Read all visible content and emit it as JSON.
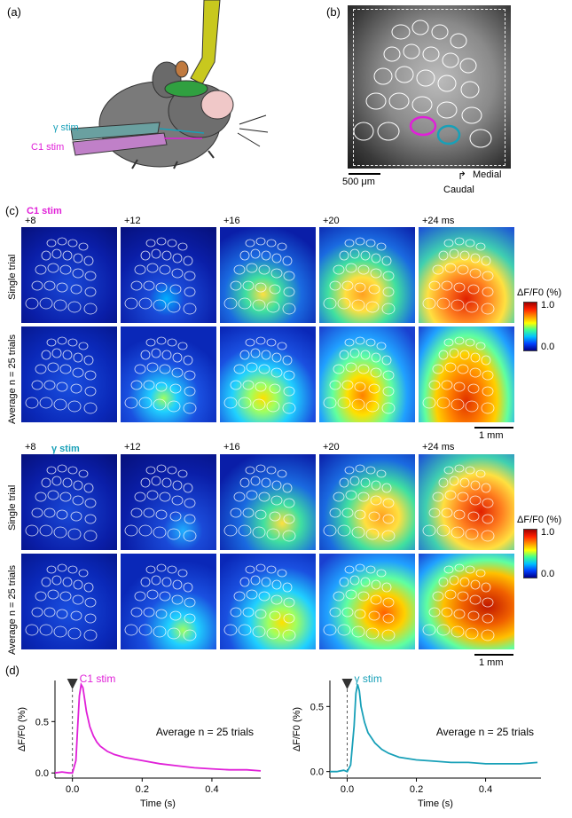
{
  "panels": {
    "a": "(a)",
    "b": "(b)",
    "c": "(c)",
    "d": "(d)"
  },
  "panel_a": {
    "gamma_stim": "γ stim",
    "c1_stim": "C1 stim"
  },
  "panel_b": {
    "scale": "500 μm",
    "medial": "Medial",
    "caudal": "Caudal"
  },
  "panel_c": {
    "c1_block_title": "C1 stim",
    "gamma_block_title": "γ stim",
    "times": [
      "+8",
      "+12",
      "+16",
      "+20",
      "+24 ms"
    ],
    "row_single": "Single trial",
    "row_average": "Average n = 25 trials",
    "colorbar_label": "ΔF/F0 (%)",
    "colorbar_ticks": [
      "1.0",
      "0.0"
    ],
    "scale": "1 mm",
    "colors": {
      "c1": "#e020d8",
      "gamma": "#18a0b8"
    }
  },
  "chart_data": [
    {
      "type": "line",
      "stim_label": "C1 stim",
      "annotation": "Average n = 25 trials",
      "xlabel": "Time (s)",
      "ylabel": "ΔF/F0 (%)",
      "xlim": [
        -0.05,
        0.54
      ],
      "ylim": [
        -0.05,
        0.9
      ],
      "xticks": [
        "0.0",
        "0.2",
        "0.4"
      ],
      "yticks": [
        "0.0",
        "0.5"
      ],
      "color": "#e020d8",
      "x": [
        -0.05,
        -0.03,
        -0.01,
        0.0,
        0.01,
        0.015,
        0.02,
        0.025,
        0.03,
        0.035,
        0.04,
        0.05,
        0.06,
        0.07,
        0.08,
        0.1,
        0.12,
        0.15,
        0.2,
        0.25,
        0.3,
        0.35,
        0.4,
        0.45,
        0.5,
        0.54
      ],
      "y": [
        0.0,
        0.01,
        0.0,
        0.0,
        0.12,
        0.45,
        0.75,
        0.86,
        0.83,
        0.72,
        0.6,
        0.45,
        0.36,
        0.3,
        0.26,
        0.21,
        0.18,
        0.15,
        0.12,
        0.09,
        0.07,
        0.05,
        0.04,
        0.03,
        0.03,
        0.02
      ]
    },
    {
      "type": "line",
      "stim_label": "γ stim",
      "annotation": "Average n = 25 trials",
      "xlabel": "Time (s)",
      "ylabel": "ΔF/F0 (%)",
      "xlim": [
        -0.05,
        0.56
      ],
      "ylim": [
        -0.05,
        0.7
      ],
      "xticks": [
        "0.0",
        "0.2",
        "0.4"
      ],
      "yticks": [
        "0.0",
        "0.5"
      ],
      "color": "#18a0b8",
      "x": [
        -0.05,
        -0.03,
        -0.01,
        0.0,
        0.01,
        0.02,
        0.025,
        0.03,
        0.035,
        0.04,
        0.05,
        0.06,
        0.08,
        0.1,
        0.12,
        0.15,
        0.2,
        0.25,
        0.3,
        0.35,
        0.4,
        0.45,
        0.5,
        0.55
      ],
      "y": [
        0.0,
        0.0,
        0.01,
        0.0,
        0.05,
        0.35,
        0.6,
        0.67,
        0.62,
        0.5,
        0.38,
        0.3,
        0.22,
        0.17,
        0.14,
        0.11,
        0.09,
        0.08,
        0.07,
        0.07,
        0.06,
        0.06,
        0.06,
        0.07
      ]
    }
  ]
}
